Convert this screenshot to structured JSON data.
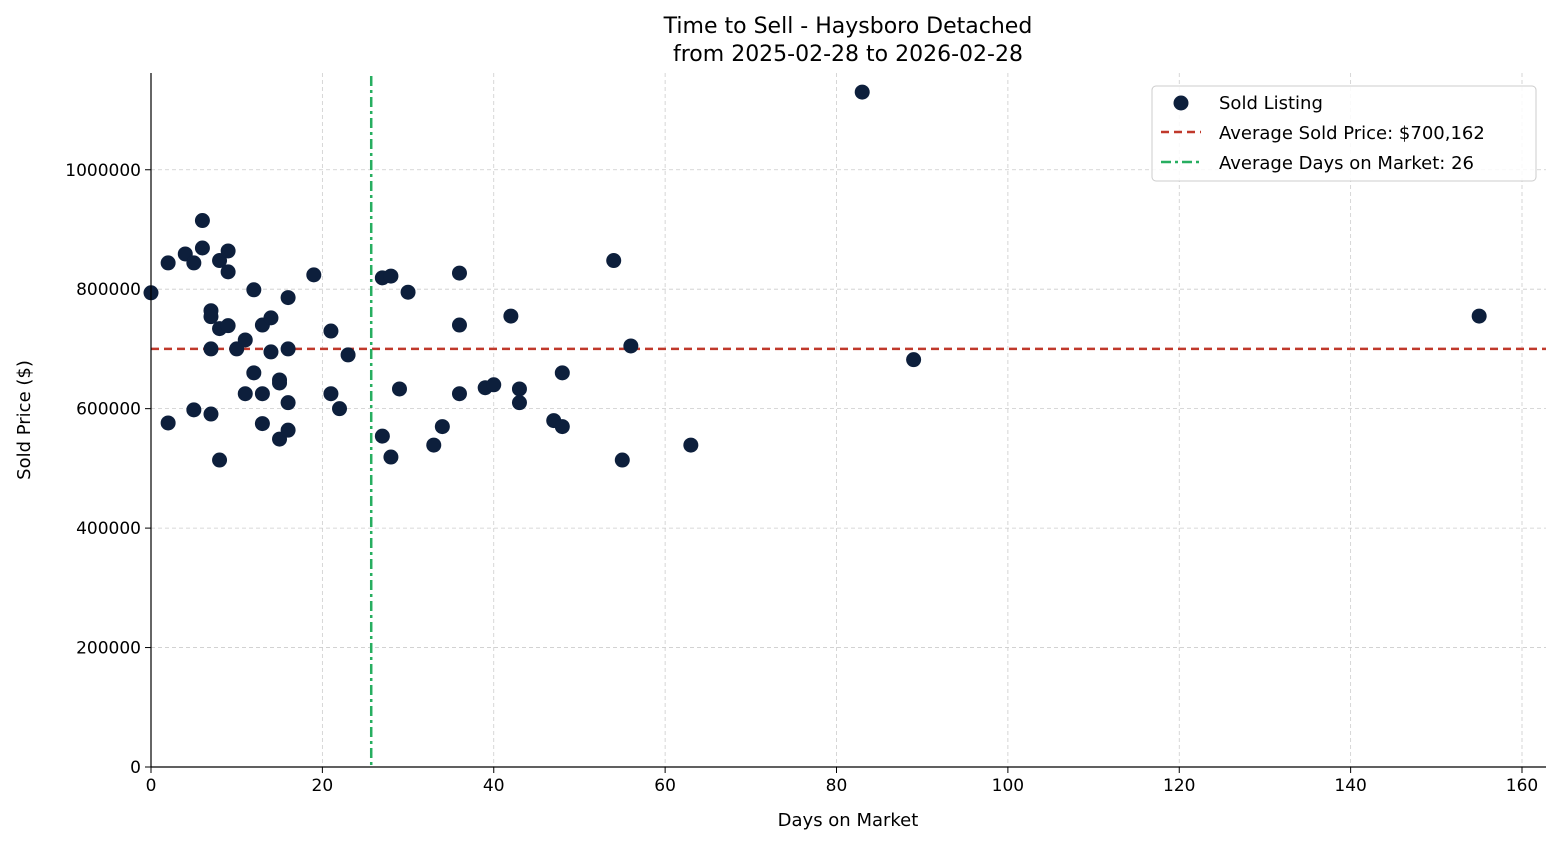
{
  "chart_data": {
    "type": "scatter",
    "title": "Time to Sell - Haysboro Detached",
    "subtitle": "from 2025-02-28 to 2026-02-28",
    "xlabel": "Days on Market",
    "ylabel": "Sold Price ($)",
    "xlim": [
      0,
      162.8
    ],
    "ylim": [
      0,
      1162000
    ],
    "xticks": [
      0,
      20,
      40,
      60,
      80,
      100,
      120,
      140,
      160
    ],
    "yticks": [
      0,
      200000,
      400000,
      600000,
      800000,
      1000000
    ],
    "grid": true,
    "legend_position": "top-right",
    "legend": [
      "Sold Listing",
      "Average Sold Price: $700,162",
      "Average Days on Market: 26"
    ],
    "avg_price": 700162,
    "avg_days": 25.7,
    "colors": {
      "points": "#0d1f3c",
      "avg_price": "#c0392b",
      "avg_days": "#27ae60"
    },
    "points": [
      [
        0,
        794000
      ],
      [
        2,
        844000
      ],
      [
        2,
        576000
      ],
      [
        4,
        859000
      ],
      [
        5,
        844000
      ],
      [
        5,
        598000
      ],
      [
        6,
        915000
      ],
      [
        6,
        869000
      ],
      [
        7,
        764000
      ],
      [
        7,
        754000
      ],
      [
        7,
        700000
      ],
      [
        7,
        591000
      ],
      [
        8,
        848000
      ],
      [
        8,
        734000
      ],
      [
        8,
        514000
      ],
      [
        9,
        864000
      ],
      [
        9,
        829000
      ],
      [
        9,
        739000
      ],
      [
        10,
        700000
      ],
      [
        11,
        715000
      ],
      [
        11,
        625000
      ],
      [
        12,
        799000
      ],
      [
        12,
        660000
      ],
      [
        13,
        740000
      ],
      [
        13,
        625000
      ],
      [
        13,
        575000
      ],
      [
        14,
        752000
      ],
      [
        14,
        695000
      ],
      [
        15,
        648000
      ],
      [
        15,
        643000
      ],
      [
        15,
        549000
      ],
      [
        16,
        786000
      ],
      [
        16,
        700000
      ],
      [
        16,
        610000
      ],
      [
        16,
        564000
      ],
      [
        19,
        824000
      ],
      [
        21,
        730000
      ],
      [
        21,
        625000
      ],
      [
        22,
        600000
      ],
      [
        23,
        690000
      ],
      [
        27,
        819000
      ],
      [
        28,
        822000
      ],
      [
        27,
        554000
      ],
      [
        28,
        519000
      ],
      [
        29,
        633000
      ],
      [
        30,
        795000
      ],
      [
        33,
        539000
      ],
      [
        34,
        570000
      ],
      [
        36,
        827000
      ],
      [
        36,
        740000
      ],
      [
        36,
        625000
      ],
      [
        39,
        635000
      ],
      [
        40,
        640000
      ],
      [
        42,
        755000
      ],
      [
        43,
        633000
      ],
      [
        43,
        610000
      ],
      [
        47,
        580000
      ],
      [
        48,
        660000
      ],
      [
        48,
        570000
      ],
      [
        54,
        848000
      ],
      [
        55,
        514000
      ],
      [
        56,
        705000
      ],
      [
        63,
        539000
      ],
      [
        83,
        1130000
      ],
      [
        89,
        682000
      ],
      [
        155,
        755000
      ]
    ]
  }
}
